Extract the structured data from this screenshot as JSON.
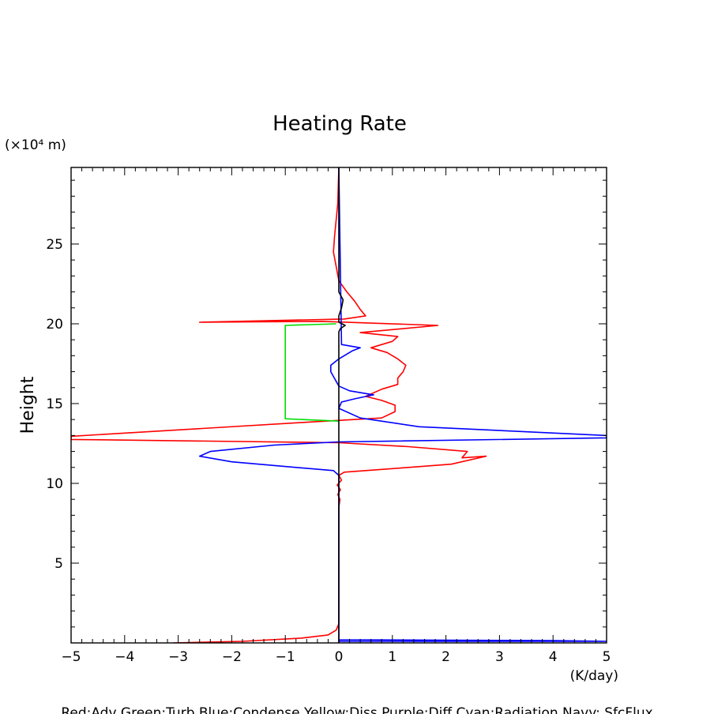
{
  "chart_data": {
    "type": "line",
    "title": "Heating Rate",
    "ylabel": "Height",
    "yunit": "(×10⁴ m)",
    "xlabel": "(K/day)",
    "xlim": [
      -5,
      5
    ],
    "ylim": [
      0,
      29.8
    ],
    "xticks": [
      -5,
      -4,
      -3,
      -2,
      -1,
      0,
      1,
      2,
      3,
      4,
      5
    ],
    "yticks": [
      5,
      10,
      15,
      20,
      25
    ],
    "grid": false,
    "footer": "Red:Adv  Green:Turb  Blue:Condense  Yellow:Diss  Purple:Diff  Cyan:Radiation  Navy: SfcFlux",
    "colors": {
      "red": "#ff0000",
      "green": "#00dd00",
      "blue": "#0000ff",
      "black": "#000000"
    },
    "series": [
      {
        "color": "red",
        "points": [
          [
            -3.1,
            0.0
          ],
          [
            -1.8,
            0.1
          ],
          [
            -0.7,
            0.3
          ],
          [
            -0.2,
            0.5
          ],
          [
            -0.05,
            0.8
          ],
          [
            0.0,
            1.2
          ],
          [
            0.0,
            3.0
          ],
          [
            0.0,
            5.0
          ],
          [
            0.0,
            7.0
          ],
          [
            0.0,
            8.5
          ],
          [
            0.02,
            9.0
          ],
          [
            -0.02,
            9.3
          ],
          [
            0.03,
            9.6
          ],
          [
            -0.03,
            9.9
          ],
          [
            0.05,
            10.2
          ],
          [
            0.0,
            10.5
          ],
          [
            0.1,
            10.7
          ],
          [
            1.3,
            11.0
          ],
          [
            2.1,
            11.2
          ],
          [
            2.75,
            11.7
          ],
          [
            2.3,
            11.6
          ],
          [
            2.4,
            12.0
          ],
          [
            1.3,
            12.3
          ],
          [
            0.0,
            12.55
          ],
          [
            -5.0,
            12.75
          ],
          [
            -5.0,
            12.95
          ],
          [
            -0.5,
            13.85
          ],
          [
            0.8,
            14.1
          ],
          [
            1.05,
            14.5
          ],
          [
            1.05,
            14.9
          ],
          [
            0.8,
            15.2
          ],
          [
            0.5,
            15.45
          ],
          [
            0.8,
            15.9
          ],
          [
            1.1,
            16.2
          ],
          [
            1.1,
            16.6
          ],
          [
            1.2,
            17.0
          ],
          [
            1.25,
            17.4
          ],
          [
            1.1,
            17.8
          ],
          [
            0.9,
            18.2
          ],
          [
            0.6,
            18.5
          ],
          [
            1.0,
            18.9
          ],
          [
            1.1,
            19.2
          ],
          [
            0.4,
            19.45
          ],
          [
            1.85,
            19.9
          ],
          [
            -0.3,
            20.15
          ],
          [
            -2.6,
            20.1
          ],
          [
            0.1,
            20.3
          ],
          [
            0.5,
            20.5
          ],
          [
            0.4,
            20.9
          ],
          [
            0.3,
            21.4
          ],
          [
            0.15,
            22.0
          ],
          [
            0.0,
            22.7
          ],
          [
            -0.05,
            23.6
          ],
          [
            -0.1,
            24.5
          ],
          [
            -0.08,
            25.5
          ],
          [
            -0.05,
            26.5
          ],
          [
            -0.02,
            27.5
          ],
          [
            0.0,
            29.8
          ]
        ]
      },
      {
        "color": "green",
        "points": [
          [
            0.0,
            13.9
          ],
          [
            -1.0,
            14.05
          ],
          [
            -1.0,
            19.9
          ],
          [
            -0.05,
            20.0
          ]
        ]
      },
      {
        "color": "blue",
        "points": [
          [
            0.0,
            0.0
          ],
          [
            0.0,
            0.2
          ],
          [
            4.0,
            0.15
          ],
          [
            5.0,
            0.1
          ],
          [
            0.0,
            0.1
          ],
          [
            0.0,
            10.5
          ],
          [
            -0.1,
            10.8
          ],
          [
            -0.8,
            11.0
          ],
          [
            -2.0,
            11.35
          ],
          [
            -2.6,
            11.7
          ],
          [
            -2.4,
            12.0
          ],
          [
            -1.2,
            12.4
          ],
          [
            0.0,
            12.6
          ],
          [
            5.0,
            12.85
          ],
          [
            5.0,
            13.0
          ],
          [
            1.5,
            13.55
          ],
          [
            0.4,
            14.1
          ],
          [
            0.0,
            14.7
          ],
          [
            0.05,
            15.1
          ],
          [
            0.3,
            15.3
          ],
          [
            0.65,
            15.55
          ],
          [
            0.2,
            15.8
          ],
          [
            0.0,
            16.1
          ],
          [
            -0.15,
            17.0
          ],
          [
            -0.15,
            17.4
          ],
          [
            0.0,
            17.8
          ],
          [
            0.25,
            18.3
          ],
          [
            0.4,
            18.5
          ],
          [
            0.05,
            18.7
          ],
          [
            0.0,
            29.8
          ]
        ]
      },
      {
        "color": "black",
        "points": [
          [
            0.0,
            0.0
          ],
          [
            0.0,
            19.5
          ],
          [
            0.03,
            19.7
          ],
          [
            0.12,
            19.9
          ],
          [
            0.0,
            20.1
          ],
          [
            0.0,
            20.5
          ],
          [
            0.05,
            21.0
          ],
          [
            0.08,
            21.5
          ],
          [
            0.0,
            22.0
          ],
          [
            0.0,
            29.8
          ]
        ]
      }
    ]
  }
}
